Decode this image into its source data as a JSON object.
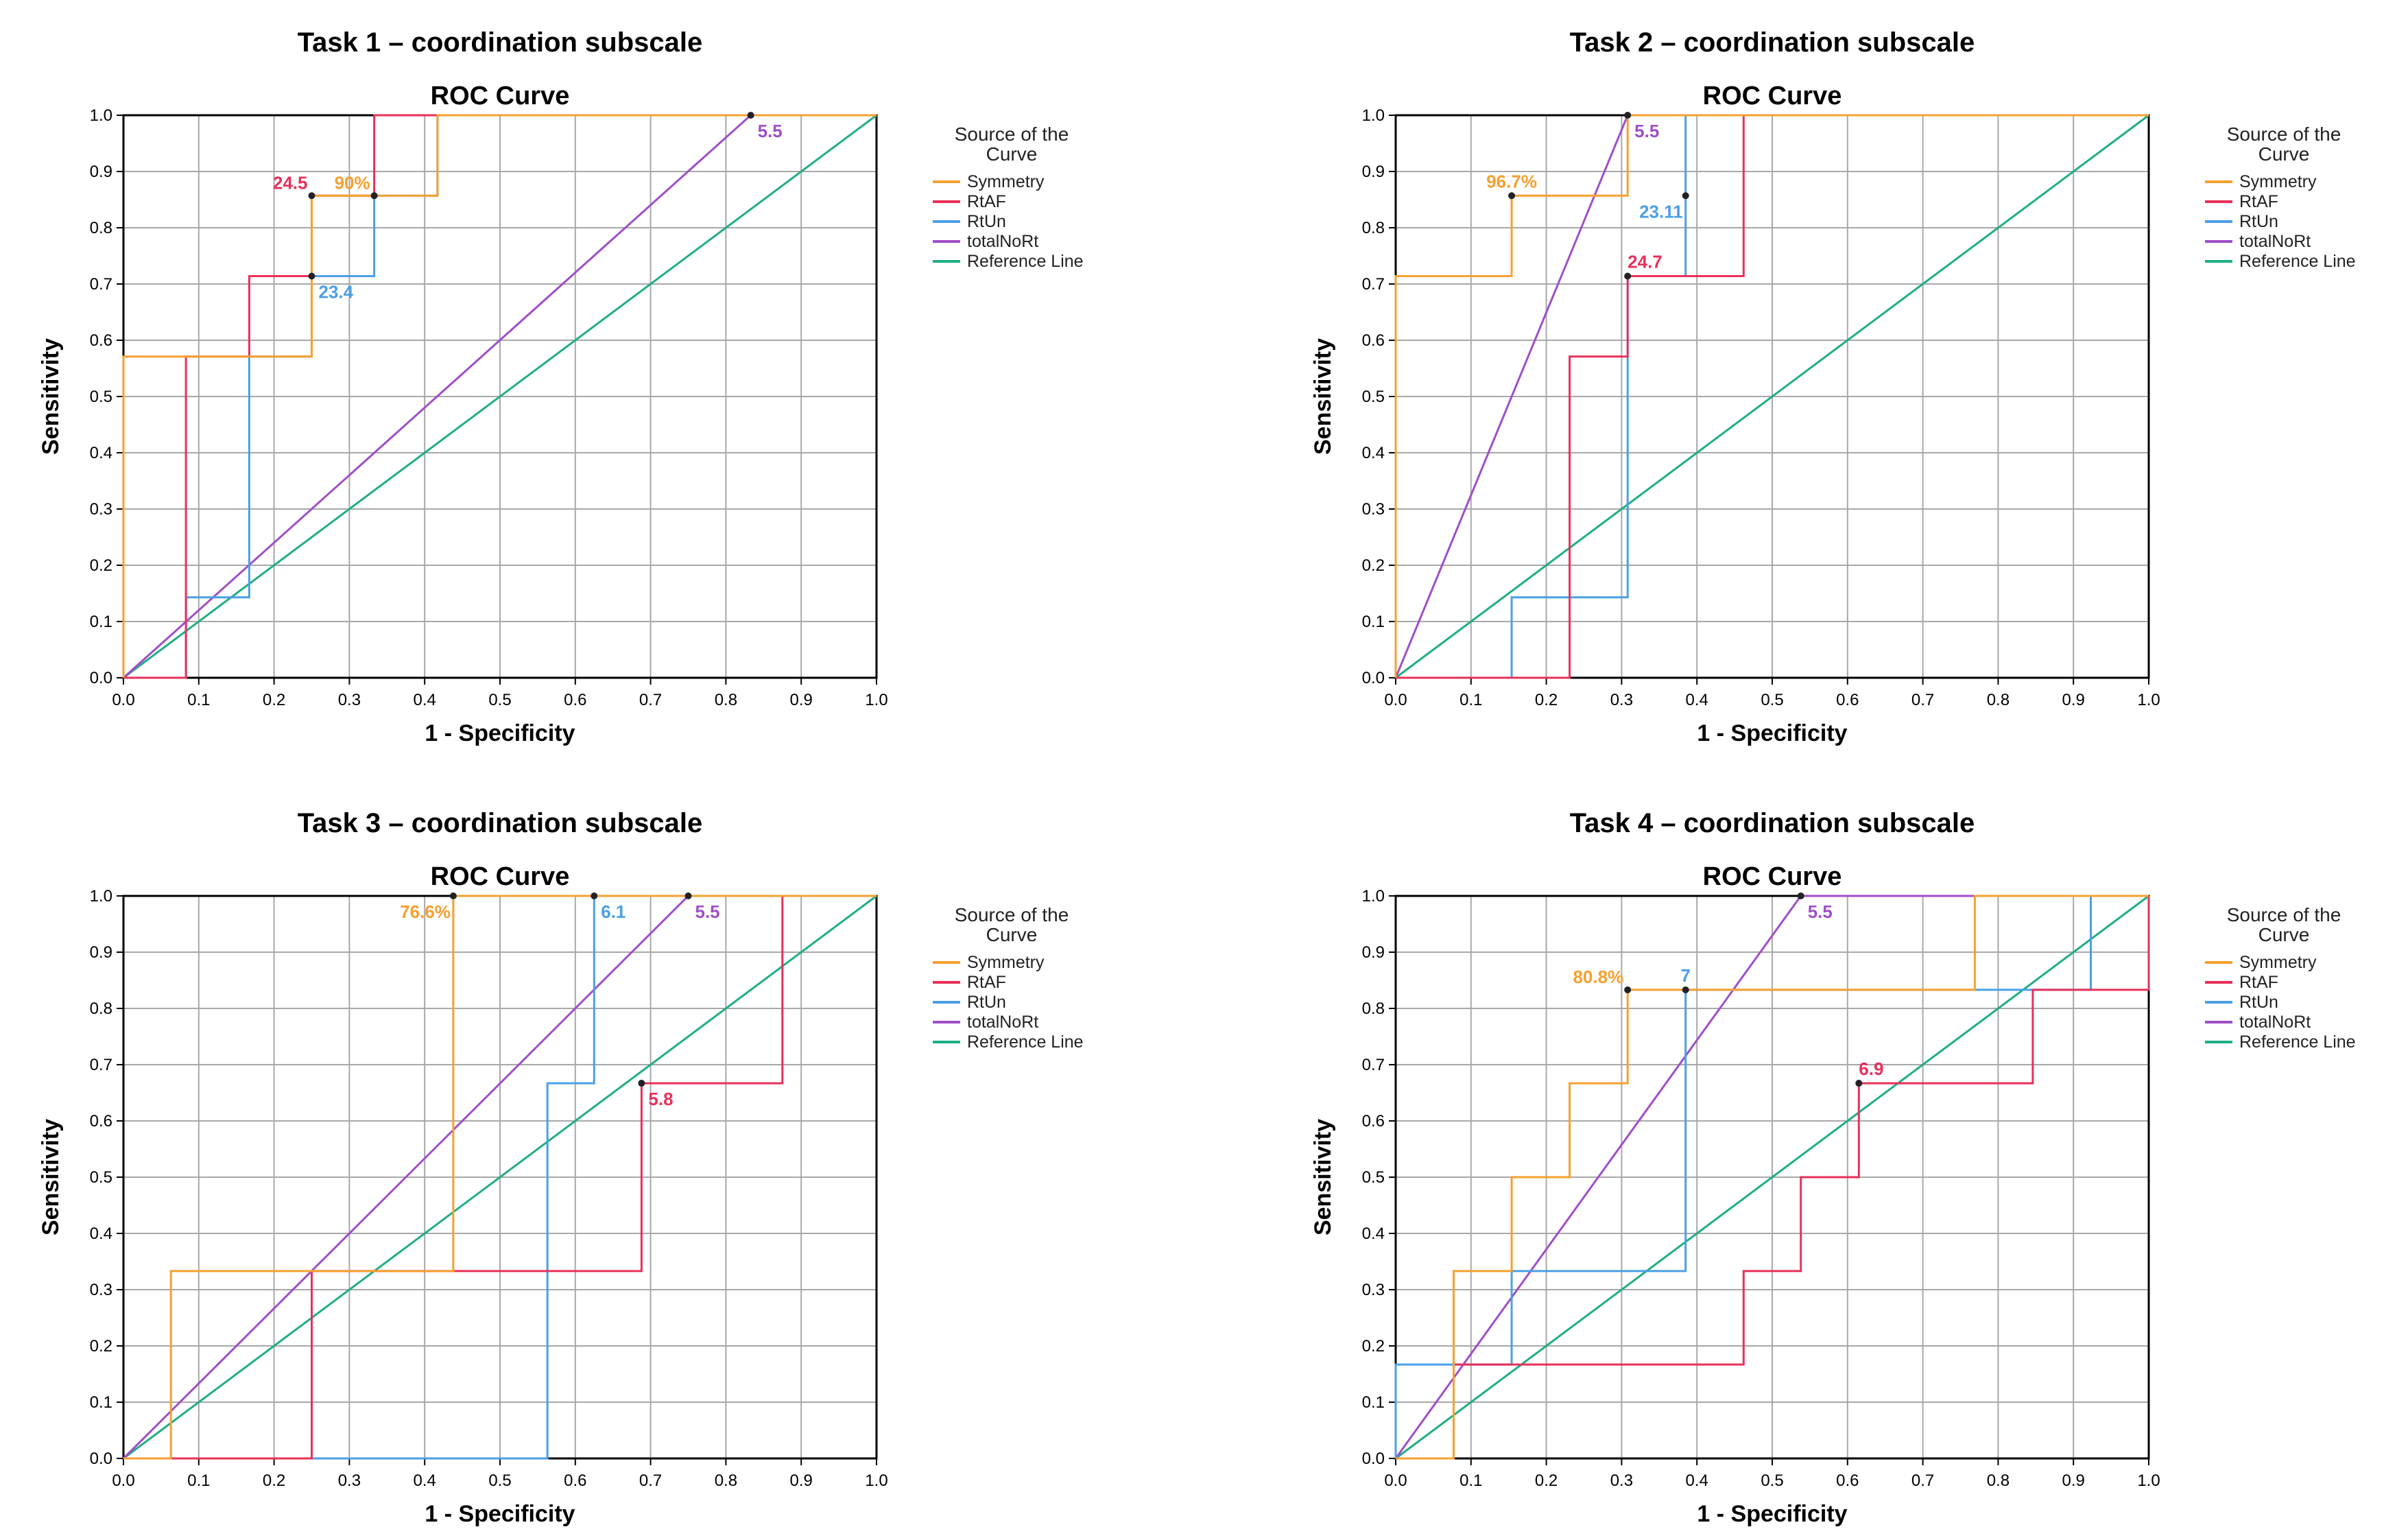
{
  "colors": {
    "Symmetry": "#f5a030",
    "RtAF": "#e8305a",
    "RtUn": "#4aa0e6",
    "totalNoRt": "#a04ec8",
    "Reference Line": "#1fae86",
    "grid": "#a8a8a8",
    "axis": "#000000",
    "point": "#222222"
  },
  "chart_data": [
    {
      "type": "line",
      "panel_title": "Task 1 – coordination subscale",
      "title": "ROC Curve",
      "xlabel": "1 - Specificity",
      "ylabel": "Sensitivity",
      "xlim": [
        0,
        1
      ],
      "ylim": [
        0,
        1
      ],
      "ticks": [
        "0.0",
        "0.1",
        "0.2",
        "0.3",
        "0.4",
        "0.5",
        "0.6",
        "0.7",
        "0.8",
        "0.9",
        "1.0"
      ],
      "grid": true,
      "legend": {
        "title": "Source of the Curve",
        "entries": [
          "Symmetry",
          "RtAF",
          "RtUn",
          "totalNoRt",
          "Reference Line"
        ],
        "position": "right"
      },
      "series": [
        {
          "name": "Symmetry",
          "x": [
            0,
            0,
            0.25,
            0.25,
            0.417,
            0.417,
            1
          ],
          "y": [
            0,
            0.571,
            0.571,
            0.857,
            0.857,
            1,
            1
          ]
        },
        {
          "name": "RtAF",
          "x": [
            0,
            0.083,
            0.083,
            0.167,
            0.167,
            0.25,
            0.25,
            0.333,
            0.333,
            1
          ],
          "y": [
            0,
            0,
            0.571,
            0.571,
            0.714,
            0.714,
            0.857,
            0.857,
            1,
            1
          ]
        },
        {
          "name": "RtUn",
          "x": [
            0,
            0.083,
            0.083,
            0.167,
            0.167,
            0.25,
            0.25,
            0.333,
            0.333,
            0.417,
            0.417,
            1
          ],
          "y": [
            0,
            0,
            0.143,
            0.143,
            0.571,
            0.571,
            0.714,
            0.714,
            0.857,
            0.857,
            1,
            1
          ]
        },
        {
          "name": "totalNoRt",
          "x": [
            0,
            0.833,
            1
          ],
          "y": [
            0,
            1,
            1
          ]
        },
        {
          "name": "Reference Line",
          "x": [
            0,
            1
          ],
          "y": [
            0,
            1
          ]
        }
      ],
      "annotations": [
        {
          "text": "24.5",
          "x": 0.25,
          "y": 0.857,
          "series": "RtAF",
          "place": "left"
        },
        {
          "text": "90%",
          "x": 0.333,
          "y": 0.857,
          "series": "Symmetry",
          "place": "left"
        },
        {
          "text": "23.4",
          "x": 0.25,
          "y": 0.714,
          "series": "RtUn",
          "place": "below-right"
        },
        {
          "text": "5.5",
          "x": 0.833,
          "y": 1.0,
          "series": "totalNoRt",
          "place": "below-right"
        }
      ]
    },
    {
      "type": "line",
      "panel_title": "Task 2 – coordination subscale",
      "title": "ROC Curve",
      "xlabel": "1 - Specificity",
      "ylabel": "Sensitivity",
      "xlim": [
        0,
        1
      ],
      "ylim": [
        0,
        1
      ],
      "ticks": [
        "0.0",
        "0.1",
        "0.2",
        "0.3",
        "0.4",
        "0.5",
        "0.6",
        "0.7",
        "0.8",
        "0.9",
        "1.0"
      ],
      "grid": true,
      "legend": {
        "title": "Source of the Curve",
        "entries": [
          "Symmetry",
          "RtAF",
          "RtUn",
          "totalNoRt",
          "Reference Line"
        ],
        "position": "right"
      },
      "series": [
        {
          "name": "Symmetry",
          "x": [
            0,
            0,
            0.154,
            0.154,
            0.308,
            0.308,
            1
          ],
          "y": [
            0,
            0.714,
            0.714,
            0.857,
            0.857,
            1,
            1
          ]
        },
        {
          "name": "RtAF",
          "x": [
            0,
            0.231,
            0.231,
            0.308,
            0.308,
            0.462,
            0.462,
            1
          ],
          "y": [
            0,
            0,
            0.571,
            0.571,
            0.714,
            0.714,
            1,
            1
          ]
        },
        {
          "name": "RtUn",
          "x": [
            0,
            0.154,
            0.154,
            0.308,
            0.308,
            0.385,
            0.385,
            1
          ],
          "y": [
            0,
            0,
            0.143,
            0.143,
            0.714,
            0.714,
            1,
            1
          ]
        },
        {
          "name": "totalNoRt",
          "x": [
            0,
            0.308,
            1
          ],
          "y": [
            0,
            1,
            1
          ]
        },
        {
          "name": "Reference Line",
          "x": [
            0,
            1
          ],
          "y": [
            0,
            1
          ]
        }
      ],
      "annotations": [
        {
          "text": "96.7%",
          "x": 0.154,
          "y": 0.857,
          "series": "Symmetry",
          "place": "above"
        },
        {
          "text": "5.5",
          "x": 0.308,
          "y": 1.0,
          "series": "totalNoRt",
          "place": "below-right"
        },
        {
          "text": "23.11",
          "x": 0.385,
          "y": 0.857,
          "series": "RtUn",
          "place": "below-left"
        },
        {
          "text": "24.7",
          "x": 0.308,
          "y": 0.714,
          "series": "RtAF",
          "place": "above-right"
        }
      ]
    },
    {
      "type": "line",
      "panel_title": "Task 3 – coordination subscale",
      "title": "ROC Curve",
      "xlabel": "1 - Specificity",
      "ylabel": "Sensitivity",
      "xlim": [
        0,
        1
      ],
      "ylim": [
        0,
        1
      ],
      "ticks": [
        "0.0",
        "0.1",
        "0.2",
        "0.3",
        "0.4",
        "0.5",
        "0.6",
        "0.7",
        "0.8",
        "0.9",
        "1.0"
      ],
      "grid": true,
      "legend": {
        "title": "Source of the Curve",
        "entries": [
          "Symmetry",
          "RtAF",
          "RtUn",
          "totalNoRt",
          "Reference Line"
        ],
        "position": "right"
      },
      "series": [
        {
          "name": "Symmetry",
          "x": [
            0,
            0.063,
            0.063,
            0.438,
            0.438,
            1
          ],
          "y": [
            0,
            0,
            0.333,
            0.333,
            1,
            1
          ]
        },
        {
          "name": "RtAF",
          "x": [
            0,
            0.25,
            0.25,
            0.688,
            0.688,
            0.875,
            0.875,
            1
          ],
          "y": [
            0,
            0,
            0.333,
            0.333,
            0.667,
            0.667,
            1,
            1
          ]
        },
        {
          "name": "RtUn",
          "x": [
            0,
            0.563,
            0.563,
            0.625,
            0.625,
            1
          ],
          "y": [
            0,
            0,
            0.667,
            0.667,
            1,
            1
          ]
        },
        {
          "name": "totalNoRt",
          "x": [
            0,
            0.75,
            1
          ],
          "y": [
            0,
            1,
            1
          ]
        },
        {
          "name": "Reference Line",
          "x": [
            0,
            1
          ],
          "y": [
            0,
            1
          ]
        }
      ],
      "annotations": [
        {
          "text": "76.6%",
          "x": 0.438,
          "y": 1.0,
          "series": "Symmetry",
          "place": "below-left"
        },
        {
          "text": "6.1",
          "x": 0.625,
          "y": 1.0,
          "series": "RtUn",
          "place": "below-right"
        },
        {
          "text": "5.5",
          "x": 0.75,
          "y": 1.0,
          "series": "totalNoRt",
          "place": "below-right"
        },
        {
          "text": "5.8",
          "x": 0.688,
          "y": 0.667,
          "series": "RtAF",
          "place": "below-right"
        }
      ]
    },
    {
      "type": "line",
      "panel_title": "Task 4 – coordination subscale",
      "title": "ROC Curve",
      "xlabel": "1 - Specificity",
      "ylabel": "Sensitivity",
      "xlim": [
        0,
        1
      ],
      "ylim": [
        0,
        1
      ],
      "ticks": [
        "0.0",
        "0.1",
        "0.2",
        "0.3",
        "0.4",
        "0.5",
        "0.6",
        "0.7",
        "0.8",
        "0.9",
        "1.0"
      ],
      "grid": true,
      "legend": {
        "title": "Source of the Curve",
        "entries": [
          "Symmetry",
          "RtAF",
          "RtUn",
          "totalNoRt",
          "Reference Line"
        ],
        "position": "right"
      },
      "series": [
        {
          "name": "Symmetry",
          "x": [
            0,
            0.077,
            0.077,
            0.154,
            0.154,
            0.231,
            0.231,
            0.308,
            0.308,
            0.769,
            0.769,
            1
          ],
          "y": [
            0,
            0,
            0.333,
            0.333,
            0.5,
            0.5,
            0.667,
            0.667,
            0.833,
            0.833,
            1,
            1
          ]
        },
        {
          "name": "RtAF",
          "x": [
            0,
            0.077,
            0.077,
            0.462,
            0.462,
            0.538,
            0.538,
            0.615,
            0.615,
            0.846,
            0.846,
            1,
            1
          ],
          "y": [
            0,
            0,
            0.167,
            0.167,
            0.333,
            0.333,
            0.5,
            0.5,
            0.667,
            0.667,
            0.833,
            0.833,
            1
          ]
        },
        {
          "name": "RtUn",
          "x": [
            0,
            0,
            0.154,
            0.154,
            0.385,
            0.385,
            0.923,
            0.923,
            1
          ],
          "y": [
            0,
            0.167,
            0.167,
            0.333,
            0.333,
            0.833,
            0.833,
            1,
            1
          ]
        },
        {
          "name": "totalNoRt",
          "x": [
            0,
            0.538,
            1
          ],
          "y": [
            0,
            1,
            1
          ]
        },
        {
          "name": "Reference Line",
          "x": [
            0,
            1
          ],
          "y": [
            0,
            1
          ]
        }
      ],
      "annotations": [
        {
          "text": "80.8%",
          "x": 0.308,
          "y": 0.833,
          "series": "Symmetry",
          "place": "left"
        },
        {
          "text": "7",
          "x": 0.385,
          "y": 0.833,
          "series": "RtUn",
          "place": "above"
        },
        {
          "text": "5.5",
          "x": 0.538,
          "y": 1.0,
          "series": "totalNoRt",
          "place": "below-right"
        },
        {
          "text": "6.9",
          "x": 0.615,
          "y": 0.667,
          "series": "RtAF",
          "place": "above-right"
        }
      ]
    }
  ]
}
